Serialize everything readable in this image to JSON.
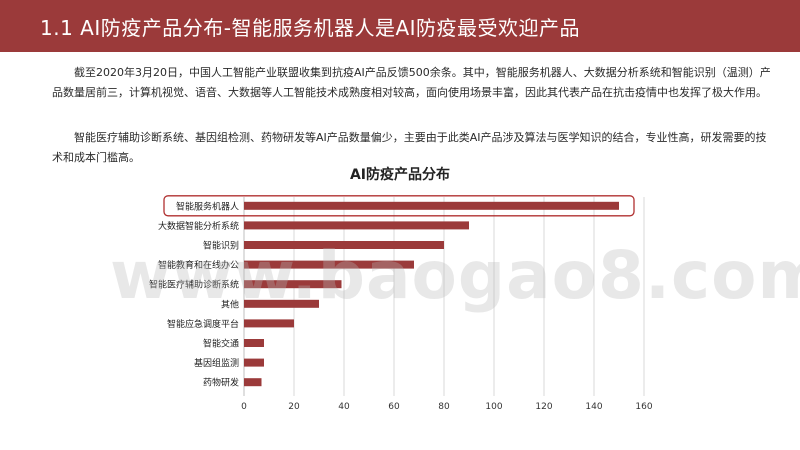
{
  "header": {
    "title": "1.1 AI防疫产品分布-智能服务机器人是AI防疫最受欢迎产品"
  },
  "paragraphs": [
    "截至2020年3月20日，中国人工智能产业联盟收集到抗疫AI产品反馈500余条。其中，智能服务机器人、大数据分析系统和智能识别（温测）产品数量居前三，计算机视觉、语音、大数据等人工智能技术成熟度相对较高，面向使用场景丰富，因此其代表产品在抗击疫情中也发挥了极大作用。",
    "智能医疗辅助诊断系统、基因组检测、药物研发等AI产品数量偏少，主要由于此类AI产品涉及算法与医学知识的结合，专业性高，研发需要的技术和成本门槛高。"
  ],
  "watermark": "www.baogao8.com",
  "colors": {
    "header": "#9b3a3a",
    "bar": "#9b3a3a",
    "highlight": "#b03030",
    "grid": "#d9d9d9"
  },
  "chart_data": {
    "type": "bar",
    "orientation": "horizontal",
    "title": "AI防疫产品分布",
    "categories": [
      "智能服务机器人",
      "大数据智能分析系统",
      "智能识别",
      "智能教育和在线办公",
      "智能医疗辅助诊断系统",
      "其他",
      "智能应急调度平台",
      "智能交通",
      "基因组监测",
      "药物研发"
    ],
    "values": [
      150,
      90,
      80,
      68,
      39,
      30,
      20,
      8,
      8,
      7
    ],
    "xlim": [
      0,
      160
    ],
    "xticks": [
      0,
      20,
      40,
      60,
      80,
      100,
      120,
      140,
      160
    ],
    "grid": true,
    "highlighted_category": "智能服务机器人"
  }
}
